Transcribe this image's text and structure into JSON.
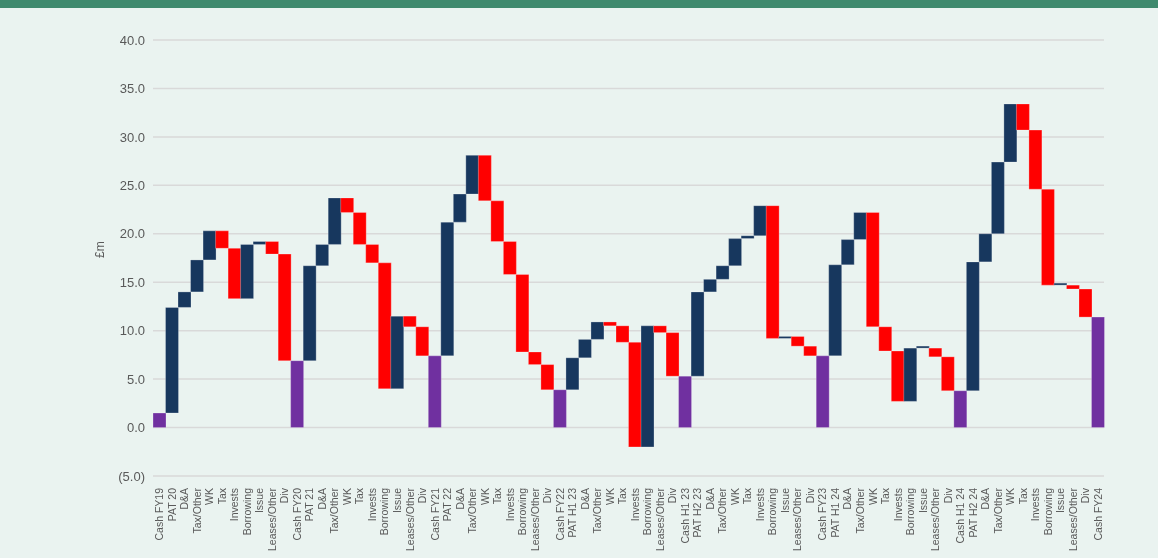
{
  "chart_data": {
    "type": "bar",
    "ylabel": "£m",
    "categories": [
      "Cash FY19",
      "PAT 20",
      "D&A",
      "Tax/Other",
      "WK",
      "Tax",
      "Invests",
      "Borrowing",
      "Issue",
      "Leases/Other",
      "Div",
      "Cash FY20",
      "PAT 21",
      "D&A",
      "Tax/Other",
      "WK",
      "Tax",
      "Invests",
      "Borrowing",
      "Issue",
      "Leases/Other",
      "Div",
      "Cash FY21",
      "PAT 22",
      "D&A",
      "Tax/Other",
      "WK",
      "Tax",
      "Invests",
      "Borrowing",
      "Leases/Other",
      "Div",
      "Cash FY22",
      "PAT H1 23",
      "D&A",
      "Tax/Other",
      "WK",
      "Tax",
      "Invests",
      "Borrowing",
      "Leases/Other",
      "Div",
      "Cash H1 23",
      "PAT H2 23",
      "D&A",
      "Tax/Other",
      "WK",
      "Tax",
      "Invests",
      "Borrowing",
      "Issue",
      "Leases/Other",
      "Div",
      "Cash FY23",
      "PAT H1 24",
      "D&A",
      "Tax/Other",
      "WK",
      "Tax",
      "Invests",
      "Borrowing",
      "Issue",
      "Leases/Other",
      "Div",
      "Cash H1 24",
      "PAT H2 24",
      "D&A",
      "Tax/Other",
      "WK",
      "Tax",
      "Invests",
      "Borrowing",
      "Issue",
      "Leases/Other",
      "Div",
      "Cash FY24"
    ],
    "base": [
      0,
      1.5,
      12.4,
      14.0,
      17.3,
      20.3,
      18.5,
      13.3,
      18.9,
      19.2,
      17.9,
      0,
      6.9,
      16.7,
      18.9,
      23.7,
      22.2,
      18.9,
      17.0,
      4.0,
      11.5,
      10.4,
      0,
      7.4,
      21.2,
      24.1,
      28.1,
      23.4,
      19.2,
      15.8,
      7.8,
      6.5,
      0,
      3.9,
      7.2,
      9.1,
      10.9,
      10.5,
      8.8,
      -2.0,
      10.5,
      9.8,
      0,
      5.3,
      14.0,
      15.3,
      16.7,
      19.5,
      19.8,
      22.9,
      9.2,
      9.4,
      8.4,
      0,
      7.4,
      16.8,
      19.4,
      22.2,
      10.4,
      7.9,
      2.7,
      8.2,
      8.2,
      7.3,
      0,
      3.8,
      17.1,
      20.0,
      27.4,
      33.4,
      30.7,
      24.6,
      14.7,
      14.7,
      14.3,
      0
    ],
    "values": [
      1.5,
      10.9,
      1.6,
      3.3,
      3.0,
      -1.8,
      -5.2,
      5.6,
      0.3,
      -1.3,
      -11.0,
      6.9,
      9.8,
      2.2,
      4.8,
      -1.5,
      -3.3,
      -1.9,
      -13.0,
      7.5,
      -1.1,
      -3.0,
      7.4,
      13.8,
      2.9,
      4.0,
      -4.7,
      -4.2,
      -3.4,
      -8.0,
      -1.3,
      -2.6,
      3.9,
      3.3,
      1.9,
      1.8,
      -0.4,
      -1.7,
      -10.8,
      12.5,
      -0.7,
      -4.5,
      5.3,
      8.7,
      1.3,
      1.4,
      2.8,
      0.3,
      3.1,
      -13.7,
      0.2,
      -1.0,
      -1.0,
      7.4,
      9.4,
      2.6,
      2.8,
      -11.8,
      -2.5,
      -5.2,
      5.5,
      0,
      -0.9,
      -3.5,
      3.8,
      13.3,
      2.9,
      7.4,
      6.0,
      -2.7,
      -6.1,
      -9.9,
      0,
      -0.4,
      -2.9,
      11.4
    ],
    "colors": [
      "#7030a0",
      "#17375e",
      "#17375e",
      "#17375e",
      "#17375e",
      "#ff0000",
      "#ff0000",
      "#17375e",
      "#17375e",
      "#ff0000",
      "#ff0000",
      "#7030a0",
      "#17375e",
      "#17375e",
      "#17375e",
      "#ff0000",
      "#ff0000",
      "#ff0000",
      "#ff0000",
      "#17375e",
      "#ff0000",
      "#ff0000",
      "#7030a0",
      "#17375e",
      "#17375e",
      "#17375e",
      "#ff0000",
      "#ff0000",
      "#ff0000",
      "#ff0000",
      "#ff0000",
      "#ff0000",
      "#7030a0",
      "#17375e",
      "#17375e",
      "#17375e",
      "#ff0000",
      "#ff0000",
      "#ff0000",
      "#17375e",
      "#ff0000",
      "#ff0000",
      "#7030a0",
      "#17375e",
      "#17375e",
      "#17375e",
      "#17375e",
      "#17375e",
      "#17375e",
      "#ff0000",
      "#17375e",
      "#ff0000",
      "#ff0000",
      "#7030a0",
      "#17375e",
      "#17375e",
      "#17375e",
      "#ff0000",
      "#ff0000",
      "#ff0000",
      "#17375e",
      "#17375e",
      "#ff0000",
      "#ff0000",
      "#7030a0",
      "#17375e",
      "#17375e",
      "#17375e",
      "#17375e",
      "#ff0000",
      "#ff0000",
      "#ff0000",
      "#17375e",
      "#ff0000",
      "#ff0000",
      "#7030a0"
    ],
    "ylim": [
      -5,
      40
    ],
    "yticks": [
      {
        "value": -5,
        "label": "(5.0)"
      },
      {
        "value": 0,
        "label": "0.0"
      },
      {
        "value": 5,
        "label": "5.0"
      },
      {
        "value": 10,
        "label": "10.0"
      },
      {
        "value": 15,
        "label": "15.0"
      },
      {
        "value": 20,
        "label": "20.0"
      },
      {
        "value": 25,
        "label": "25.0"
      },
      {
        "value": 30,
        "label": "30.0"
      },
      {
        "value": 35,
        "label": "35.0"
      },
      {
        "value": 40,
        "label": "40.0"
      }
    ],
    "grid": "y"
  }
}
